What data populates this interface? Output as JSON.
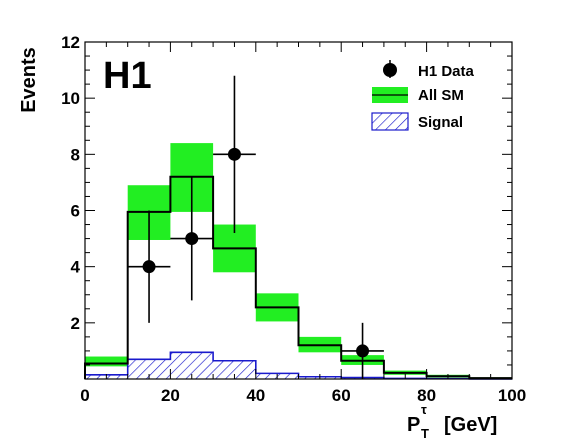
{
  "chart_data": {
    "type": "bar",
    "logo": "H1",
    "xlabel": "P",
    "xlabel_sup": "τ",
    "xlabel_sub": "T",
    "xlabel_unit": "[GeV]",
    "ylabel": "Events",
    "xlim": [
      0,
      100
    ],
    "ylim": [
      0,
      12
    ],
    "x_ticks": [
      0,
      20,
      40,
      60,
      80,
      100
    ],
    "y_ticks": [
      2,
      4,
      6,
      8,
      10,
      12
    ],
    "bin_edges": [
      0,
      10,
      20,
      30,
      40,
      50,
      60,
      70,
      80,
      90,
      100
    ],
    "legend_position": "top-right",
    "series": [
      {
        "name": "H1 Data",
        "style": "points",
        "color": "#000000",
        "x": [
          15,
          25,
          35,
          65
        ],
        "y": [
          4,
          5,
          8,
          1
        ],
        "x_err": 5,
        "y_err_low": [
          2,
          2.2,
          2.8,
          1
        ],
        "y_err_high": [
          2,
          2.2,
          2.8,
          1
        ]
      },
      {
        "name": "All SM",
        "style": "histogram-with-band",
        "line_color": "#000000",
        "band_color": "#22ee22",
        "values": [
          0.55,
          5.95,
          7.2,
          4.65,
          2.55,
          1.2,
          0.65,
          0.22,
          0.1,
          0.03
        ],
        "band_low": [
          0.45,
          4.95,
          5.95,
          3.8,
          2.05,
          0.95,
          0.5,
          0.15,
          0.05,
          0.0
        ],
        "band_high": [
          0.8,
          6.9,
          8.4,
          5.5,
          3.05,
          1.5,
          0.85,
          0.3,
          0.15,
          0.06
        ]
      },
      {
        "name": "Signal",
        "style": "hatched-histogram",
        "color": "#1a1acc",
        "values": [
          0.15,
          0.7,
          0.95,
          0.65,
          0.2,
          0.08,
          0.05,
          0.02,
          0.01,
          0.0
        ]
      }
    ]
  }
}
